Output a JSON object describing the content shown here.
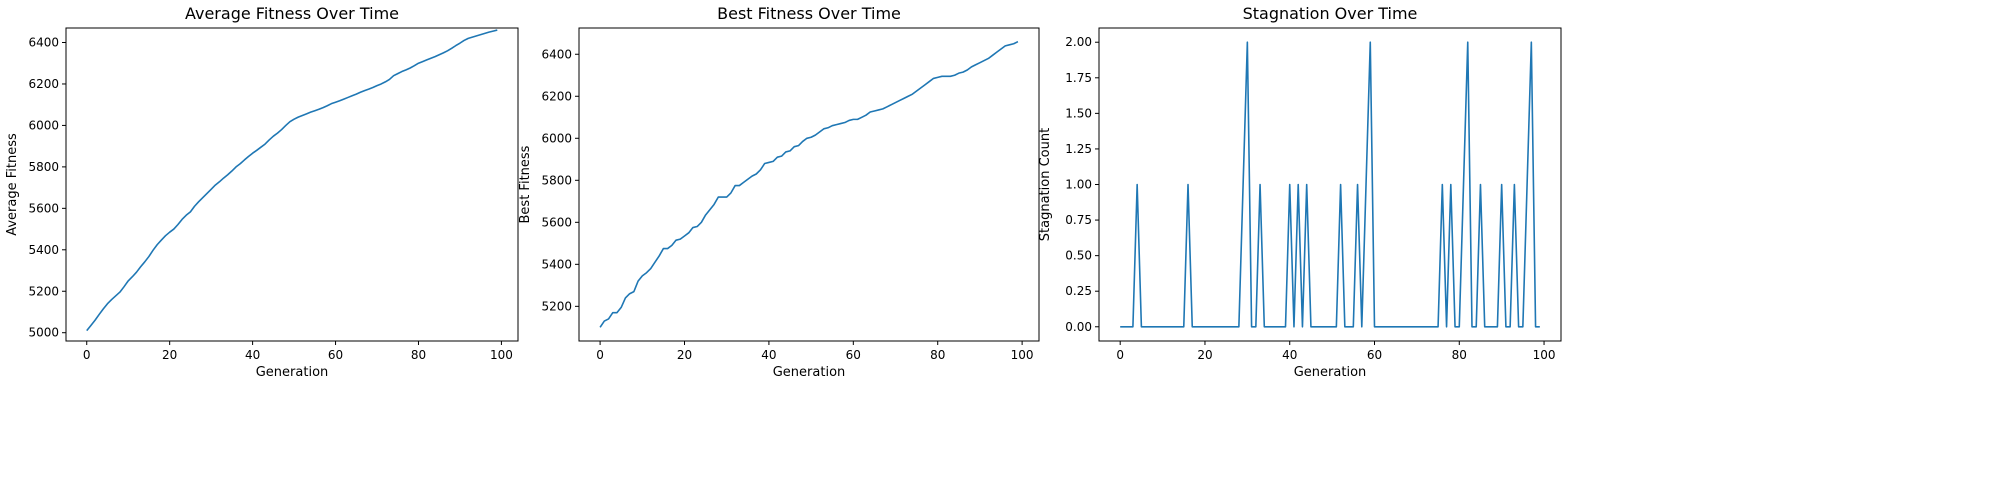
{
  "colors": {
    "line": "#1f77b4",
    "axes": "#000000",
    "background": "#ffffff"
  },
  "chart_data": [
    {
      "type": "line",
      "title": "Average Fitness Over Time",
      "xlabel": "Generation",
      "ylabel": "Average Fitness",
      "xlim": [
        -5,
        104
      ],
      "ylim": [
        4960,
        6470
      ],
      "xticks": [
        0,
        20,
        40,
        60,
        80,
        100
      ],
      "xtick_labels": [
        "0",
        "20",
        "40",
        "60",
        "80",
        "100"
      ],
      "yticks": [
        5000,
        5200,
        5400,
        5600,
        5800,
        6000,
        6200,
        6400
      ],
      "ytick_labels": [
        "5000",
        "5200",
        "5400",
        "5600",
        "5800",
        "6000",
        "6200",
        "6400"
      ],
      "grid": false,
      "series": [
        {
          "x": [
            0,
            1,
            2,
            3,
            4,
            5,
            6,
            7,
            8,
            9,
            10,
            11,
            12,
            13,
            14,
            15,
            16,
            17,
            18,
            19,
            20,
            21,
            22,
            23,
            24,
            25,
            26,
            27,
            28,
            29,
            30,
            31,
            32,
            33,
            34,
            35,
            36,
            37,
            38,
            39,
            40,
            41,
            42,
            43,
            44,
            45,
            46,
            47,
            48,
            49,
            50,
            51,
            52,
            53,
            54,
            55,
            56,
            57,
            58,
            59,
            60,
            61,
            62,
            63,
            64,
            65,
            66,
            67,
            68,
            69,
            70,
            71,
            72,
            73,
            74,
            75,
            76,
            77,
            78,
            79,
            80,
            81,
            82,
            83,
            84,
            85,
            86,
            87,
            88,
            89,
            90,
            91,
            92,
            93,
            94,
            95,
            96,
            97,
            98,
            99
          ],
          "y": [
            5010,
            5035,
            5060,
            5088,
            5115,
            5140,
            5160,
            5178,
            5196,
            5222,
            5250,
            5270,
            5292,
            5318,
            5342,
            5368,
            5398,
            5425,
            5447,
            5468,
            5485,
            5500,
            5522,
            5547,
            5567,
            5583,
            5610,
            5632,
            5652,
            5672,
            5692,
            5712,
            5728,
            5746,
            5762,
            5780,
            5800,
            5815,
            5833,
            5850,
            5866,
            5880,
            5895,
            5910,
            5930,
            5948,
            5963,
            5980,
            6000,
            6018,
            6030,
            6040,
            6048,
            6056,
            6064,
            6071,
            6078,
            6086,
            6095,
            6105,
            6112,
            6119,
            6127,
            6135,
            6143,
            6151,
            6160,
            6168,
            6175,
            6183,
            6192,
            6200,
            6210,
            6222,
            6240,
            6250,
            6260,
            6268,
            6277,
            6288,
            6300,
            6308,
            6316,
            6324,
            6332,
            6341,
            6350,
            6360,
            6372,
            6385,
            6397,
            6410,
            6420,
            6426,
            6432,
            6438,
            6444,
            6450,
            6455,
            6460
          ]
        }
      ]
    },
    {
      "type": "line",
      "title": "Best Fitness Over Time",
      "xlabel": "Generation",
      "ylabel": "Best Fitness",
      "xlim": [
        -5,
        104
      ],
      "ylim": [
        5035,
        6525
      ],
      "xticks": [
        0,
        20,
        40,
        60,
        80,
        100
      ],
      "xtick_labels": [
        "0",
        "20",
        "40",
        "60",
        "80",
        "100"
      ],
      "yticks": [
        5200,
        5400,
        5600,
        5800,
        6000,
        6200,
        6400
      ],
      "ytick_labels": [
        "5200",
        "5400",
        "5600",
        "5800",
        "6000",
        "6200",
        "6400"
      ],
      "grid": false,
      "series": [
        {
          "x": [
            0,
            1,
            2,
            3,
            4,
            5,
            6,
            7,
            8,
            9,
            10,
            11,
            12,
            13,
            14,
            15,
            16,
            17,
            18,
            19,
            20,
            21,
            22,
            23,
            24,
            25,
            26,
            27,
            28,
            29,
            30,
            31,
            32,
            33,
            34,
            35,
            36,
            37,
            38,
            39,
            40,
            41,
            42,
            43,
            44,
            45,
            46,
            47,
            48,
            49,
            50,
            51,
            52,
            53,
            54,
            55,
            56,
            57,
            58,
            59,
            60,
            61,
            62,
            63,
            64,
            65,
            66,
            67,
            68,
            69,
            70,
            71,
            72,
            73,
            74,
            75,
            76,
            77,
            78,
            79,
            80,
            81,
            82,
            83,
            84,
            85,
            86,
            87,
            88,
            89,
            90,
            91,
            92,
            93,
            94,
            95,
            96,
            97,
            98,
            99
          ],
          "y": [
            5100,
            5130,
            5140,
            5170,
            5170,
            5195,
            5240,
            5260,
            5270,
            5320,
            5345,
            5360,
            5380,
            5410,
            5440,
            5475,
            5475,
            5490,
            5515,
            5520,
            5535,
            5550,
            5575,
            5580,
            5600,
            5635,
            5660,
            5685,
            5720,
            5720,
            5720,
            5740,
            5775,
            5775,
            5790,
            5805,
            5820,
            5830,
            5850,
            5880,
            5885,
            5890,
            5910,
            5915,
            5935,
            5940,
            5960,
            5965,
            5985,
            6000,
            6005,
            6015,
            6030,
            6045,
            6050,
            6060,
            6065,
            6070,
            6075,
            6085,
            6090,
            6090,
            6100,
            6110,
            6125,
            6130,
            6135,
            6140,
            6150,
            6160,
            6170,
            6180,
            6190,
            6200,
            6210,
            6225,
            6240,
            6255,
            6270,
            6285,
            6290,
            6295,
            6295,
            6295,
            6300,
            6310,
            6315,
            6325,
            6340,
            6350,
            6360,
            6370,
            6380,
            6395,
            6410,
            6425,
            6440,
            6445,
            6450,
            6460
          ]
        }
      ]
    },
    {
      "type": "line",
      "title": "Stagnation Over Time",
      "xlabel": "Generation",
      "ylabel": "Stagnation Count",
      "xlim": [
        -5,
        104
      ],
      "ylim": [
        -0.1,
        2.1
      ],
      "xticks": [
        0,
        20,
        40,
        60,
        80,
        100
      ],
      "xtick_labels": [
        "0",
        "20",
        "40",
        "60",
        "80",
        "100"
      ],
      "yticks": [
        0,
        0.25,
        0.5,
        0.75,
        1,
        1.25,
        1.5,
        1.75,
        2
      ],
      "ytick_labels": [
        "0.00",
        "0.25",
        "0.50",
        "0.75",
        "1.00",
        "1.25",
        "1.50",
        "1.75",
        "2.00"
      ],
      "grid": false,
      "series": [
        {
          "x": [
            0,
            1,
            2,
            3,
            4,
            5,
            6,
            7,
            8,
            9,
            10,
            11,
            12,
            13,
            14,
            15,
            16,
            17,
            18,
            19,
            20,
            21,
            22,
            23,
            24,
            25,
            26,
            27,
            28,
            29,
            30,
            31,
            32,
            33,
            34,
            35,
            36,
            37,
            38,
            39,
            40,
            41,
            42,
            43,
            44,
            45,
            46,
            47,
            48,
            49,
            50,
            51,
            52,
            53,
            54,
            55,
            56,
            57,
            58,
            59,
            60,
            61,
            62,
            63,
            64,
            65,
            66,
            67,
            68,
            69,
            70,
            71,
            72,
            73,
            74,
            75,
            76,
            77,
            78,
            79,
            80,
            81,
            82,
            83,
            84,
            85,
            86,
            87,
            88,
            89,
            90,
            91,
            92,
            93,
            94,
            95,
            96,
            97,
            98,
            99
          ],
          "y": [
            0,
            0,
            0,
            0,
            1,
            0,
            0,
            0,
            0,
            0,
            0,
            0,
            0,
            0,
            0,
            0,
            1,
            0,
            0,
            0,
            0,
            0,
            0,
            0,
            0,
            0,
            0,
            0,
            0,
            1,
            2,
            0,
            0,
            1,
            0,
            0,
            0,
            0,
            0,
            0,
            1,
            0,
            1,
            0,
            1,
            0,
            0,
            0,
            0,
            0,
            0,
            0,
            1,
            0,
            0,
            0,
            1,
            0,
            1,
            2,
            0,
            0,
            0,
            0,
            0,
            0,
            0,
            0,
            0,
            0,
            0,
            0,
            0,
            0,
            0,
            0,
            1,
            0,
            1,
            0,
            0,
            1,
            2,
            0,
            0,
            1,
            0,
            0,
            0,
            0,
            1,
            0,
            0,
            1,
            0,
            0,
            1,
            2,
            0,
            0
          ]
        }
      ]
    }
  ]
}
